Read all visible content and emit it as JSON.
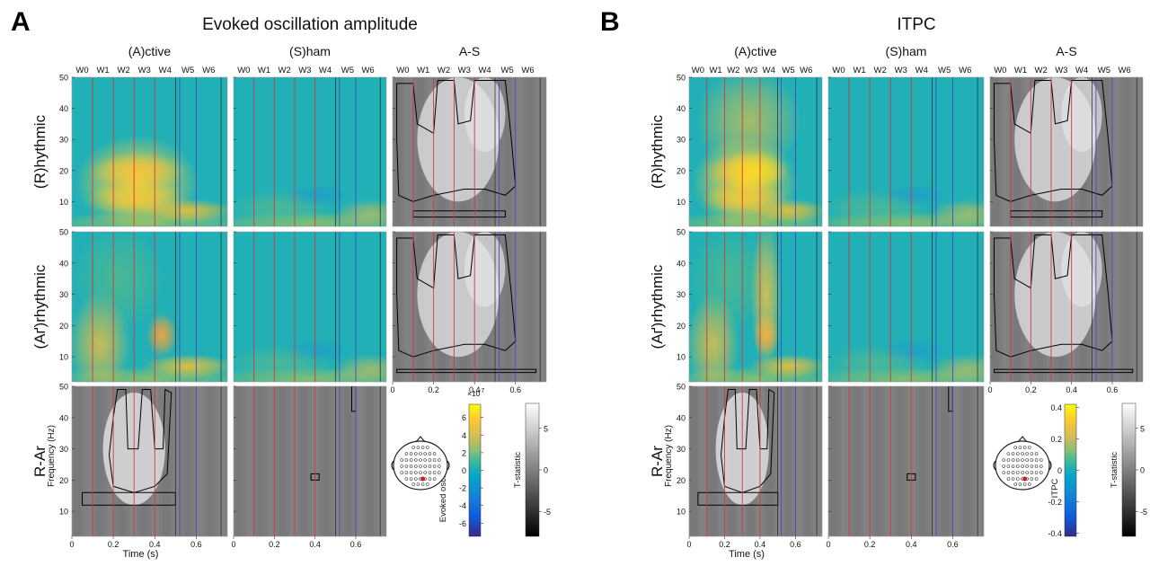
{
  "panels": [
    {
      "letter": "A",
      "title": "Evoked oscillation amplitude",
      "columns": [
        "(A)ctive",
        "(S)ham",
        "A-S"
      ],
      "rows": [
        "(R)hythmic",
        "(Aґ)rhythmic",
        "R-Ar"
      ],
      "window_labels": [
        "W0",
        "W1",
        "W2",
        "W3",
        "W4",
        "W5",
        "W6"
      ],
      "colorbar": {
        "label": "Evoked osc. amp.",
        "exponent": "×10",
        "exponent_power": "-7",
        "ticks": [
          "6",
          "4",
          "2",
          "0",
          "-2",
          "-4",
          "-6"
        ],
        "tick_values": [
          6,
          4,
          2,
          0,
          -2,
          -4,
          -6
        ],
        "range": [
          -7.5,
          7.5
        ]
      },
      "tstat_bar": {
        "label": "T-statistic",
        "ticks": [
          "5",
          "0",
          "-5"
        ],
        "tick_values": [
          5,
          0,
          -5
        ],
        "range": [
          -8,
          8
        ]
      }
    },
    {
      "letter": "B",
      "title": "ITPC",
      "columns": [
        "(A)ctive",
        "(S)ham",
        "A-S"
      ],
      "rows": [
        "(R)hythmic",
        "(Aґ)rhythmic",
        "R-Ar"
      ],
      "window_labels": [
        "W0",
        "W1",
        "W2",
        "W3",
        "W4",
        "W5",
        "W6"
      ],
      "colorbar": {
        "label": "ITPC",
        "exponent": "",
        "exponent_power": "",
        "ticks": [
          "0.4",
          "0.2",
          "0",
          "-0.2",
          "-0.4"
        ],
        "tick_values": [
          0.4,
          0.2,
          0,
          -0.2,
          -0.4
        ],
        "range": [
          -0.42,
          0.42
        ]
      },
      "tstat_bar": {
        "label": "T-statistic",
        "ticks": [
          "5",
          "0",
          "-5"
        ],
        "tick_values": [
          5,
          0,
          -5
        ],
        "range": [
          -8,
          8
        ]
      }
    }
  ],
  "axes": {
    "y_label": "Frequency (Hz)",
    "y_ticks": [
      "10",
      "20",
      "30",
      "40",
      "50"
    ],
    "x_label": "Time (s)",
    "x_ticks": [
      "0",
      "0.2",
      "0.4",
      "0.6"
    ]
  },
  "chart_data": {
    "type": "heatmap",
    "x": {
      "label": "Time (s)",
      "range": [
        0,
        0.75
      ],
      "ticks": [
        0,
        0.2,
        0.4,
        0.6
      ]
    },
    "y": {
      "label": "Frequency (Hz)",
      "range": [
        2,
        50
      ],
      "ticks": [
        10,
        20,
        30,
        40,
        50
      ]
    },
    "window_boundaries_red_s": [
      0.1,
      0.2,
      0.3,
      0.4
    ],
    "window_boundaries_blue_s": [
      0.52,
      0.6
    ],
    "window_boundaries_black_s": [
      0.5,
      0.72
    ],
    "panels": [
      {
        "panel": "A",
        "measure": "Evoked oscillation amplitude",
        "unit": "×10^-7",
        "rows": [
          "(R)hythmic",
          "(Aґ)rhythmic",
          "R-Ar"
        ],
        "columns": [
          "(A)ctive",
          "(S)ham",
          "A-S"
        ],
        "colorbar_range": [
          -7.5,
          7.5
        ],
        "tstat_range": [
          -8,
          8
        ]
      },
      {
        "panel": "B",
        "measure": "ITPC",
        "unit": "",
        "rows": [
          "(R)hythmic",
          "(Aґ)rhythmic",
          "R-Ar"
        ],
        "columns": [
          "(A)ctive",
          "(S)ham",
          "A-S"
        ],
        "colorbar_range": [
          -0.42,
          0.42
        ],
        "tstat_range": [
          -8,
          8
        ]
      }
    ],
    "significant_electrode": "red dot on scalp map (central-parietal)"
  },
  "colors": {
    "parula_low": "#352a87",
    "parula_mid": "#26b4c0",
    "parula_high": "#f9fb0e",
    "red_line": "#d0393b",
    "blue_line": "#4747c8",
    "contour": "#000000",
    "electrode_highlight": "#e41a1c"
  }
}
